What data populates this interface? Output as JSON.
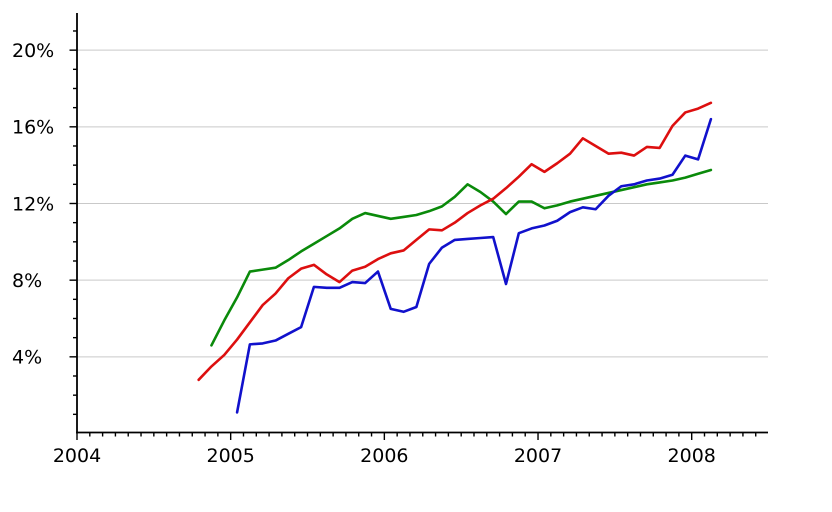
{
  "chart_data": {
    "type": "line",
    "title": "",
    "xlabel": "",
    "ylabel": "",
    "x_unit": "year",
    "y_unit": "percent",
    "x_tick_labels": [
      "2004",
      "2005",
      "2006",
      "2007",
      "2008"
    ],
    "x_tick_years": [
      2004,
      2005,
      2006,
      2007,
      2008
    ],
    "x_minor_ticks_per_year": 12,
    "y_tick_labels": [
      "4%",
      "8%",
      "12%",
      "16%",
      "20%"
    ],
    "y_tick_values": [
      4,
      8,
      12,
      16,
      20
    ],
    "y_minor_tick_step": 1,
    "y_minor_tick_max": 21,
    "ylim": [
      0,
      22
    ],
    "xlim": [
      2004,
      2008.5
    ],
    "grid": "horizontal",
    "legend": "none",
    "series": [
      {
        "name": "green-series",
        "color": "#0a8a0a",
        "cadence": "monthly",
        "start_month": "2004-11",
        "end_month": "2008-02",
        "values": [
          4.6,
          5.9,
          7.1,
          8.45,
          8.55,
          8.65,
          9.05,
          9.5,
          9.9,
          10.3,
          10.7,
          11.2,
          11.5,
          11.35,
          11.2,
          11.3,
          11.4,
          11.6,
          11.85,
          12.35,
          13.0,
          12.6,
          12.1,
          11.45,
          12.1,
          12.1,
          11.75,
          11.9,
          12.1,
          12.25,
          12.4,
          12.55,
          12.7,
          12.85,
          13.0,
          13.1,
          13.2,
          13.35,
          13.55,
          13.75
        ]
      },
      {
        "name": "blue-series",
        "color": "#1111cc",
        "cadence": "monthly",
        "start_month": "2005-01",
        "end_month": "2008-02",
        "values": [
          1.1,
          4.65,
          4.7,
          4.85,
          5.2,
          5.55,
          7.65,
          7.6,
          7.6,
          7.9,
          7.85,
          8.45,
          6.5,
          6.35,
          6.6,
          8.85,
          9.7,
          10.1,
          10.15,
          10.2,
          10.25,
          7.8,
          10.45,
          10.7,
          10.85,
          11.1,
          11.55,
          11.8,
          11.7,
          12.4,
          12.9,
          13.0,
          13.2,
          13.3,
          13.5,
          14.5,
          14.3,
          16.4
        ]
      },
      {
        "name": "red-series",
        "color": "#dd0f0f",
        "cadence": "monthly",
        "start_month": "2004-10",
        "end_month": "2008-02",
        "values": [
          2.8,
          3.5,
          4.1,
          4.9,
          5.8,
          6.7,
          7.3,
          8.1,
          8.6,
          8.8,
          8.3,
          7.9,
          8.5,
          8.7,
          9.1,
          9.4,
          9.55,
          10.1,
          10.65,
          10.6,
          11.0,
          11.5,
          11.9,
          12.25,
          12.8,
          13.4,
          14.05,
          13.65,
          14.1,
          14.6,
          15.4,
          15.0,
          14.6,
          14.65,
          14.5,
          14.95,
          14.9,
          16.05,
          16.75,
          16.95,
          17.25
        ]
      }
    ]
  },
  "colors": {
    "background": "#ffffff",
    "axis": "#000000",
    "gridline": "#c9c9c9",
    "tick": "#000000",
    "label_text": "#000000"
  }
}
